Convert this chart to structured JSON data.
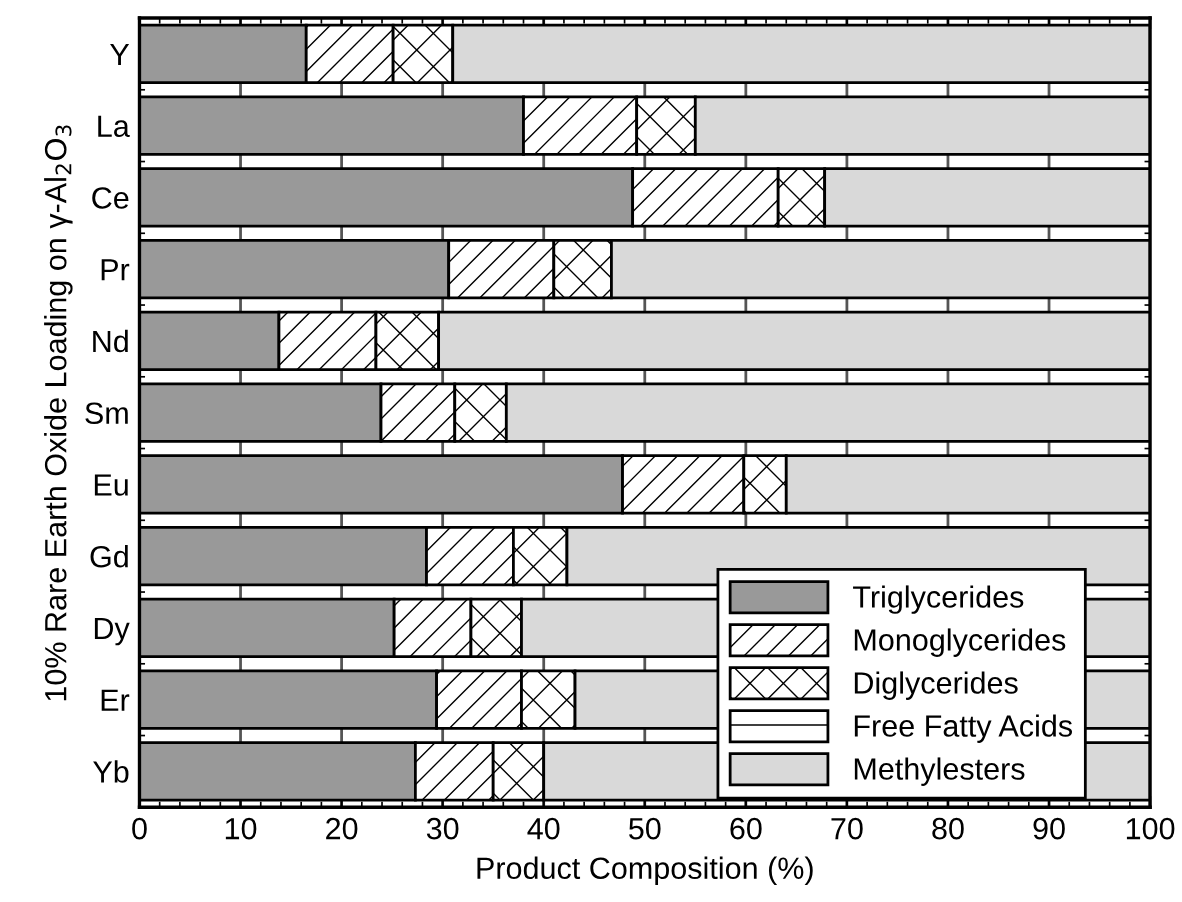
{
  "chart_data": {
    "type": "bar",
    "orientation": "horizontal",
    "stacked": true,
    "categories": [
      "Y",
      "La",
      "Ce",
      "Pr",
      "Nd",
      "Sm",
      "Eu",
      "Gd",
      "Dy",
      "Er",
      "Yb"
    ],
    "series": [
      {
        "name": "Triglycerides",
        "color": "#999999",
        "values": [
          16.5,
          38.0,
          48.8,
          30.6,
          13.8,
          23.9,
          47.8,
          28.4,
          25.2,
          29.4,
          27.3
        ]
      },
      {
        "name": "Monoglycerides",
        "color": "#000000",
        "values": [
          8.6,
          11.2,
          14.4,
          10.4,
          9.6,
          7.3,
          12.0,
          8.6,
          7.6,
          8.4,
          7.7
        ]
      },
      {
        "name": "Diglycerides",
        "color": "#000000",
        "values": [
          5.9,
          5.8,
          4.6,
          5.7,
          6.2,
          5.1,
          4.2,
          5.3,
          5.0,
          5.3,
          5.0
        ]
      },
      {
        "name": "Free Fatty Acids",
        "color": "#000000",
        "values": [
          0,
          0,
          0,
          0,
          0,
          0,
          0,
          0,
          0,
          0,
          0
        ]
      },
      {
        "name": "Methylesters",
        "color": "#d9d9d9",
        "values": [
          69.0,
          45.0,
          32.2,
          53.3,
          70.4,
          63.7,
          36.0,
          57.7,
          62.2,
          56.9,
          60.0
        ]
      }
    ],
    "xlim": [
      0,
      100
    ],
    "xticks": [
      0,
      10,
      20,
      30,
      40,
      50,
      60,
      70,
      80,
      90,
      100
    ],
    "xlabel": "Product Composition (%)",
    "ylabel": "10% Rare Earth Oxide Loading on γ-Al$_{2}$O$_{3}$",
    "grid": "x",
    "legend": "bottom right"
  }
}
